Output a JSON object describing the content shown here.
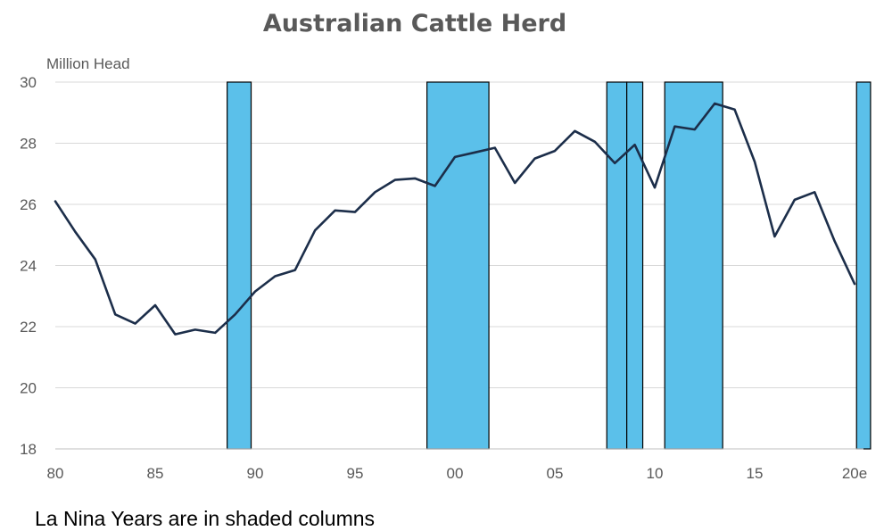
{
  "chart_data": {
    "type": "line",
    "title": "Australian Cattle Herd",
    "ylabel": "Million Head",
    "xlabel": "",
    "ylim": [
      18,
      30
    ],
    "xlim": [
      1980,
      2020
    ],
    "y_ticks": [
      18,
      20,
      22,
      24,
      26,
      28,
      30
    ],
    "x_ticks": [
      {
        "value": 1980,
        "label": "80"
      },
      {
        "value": 1985,
        "label": "85"
      },
      {
        "value": 1990,
        "label": "90"
      },
      {
        "value": 1995,
        "label": "95"
      },
      {
        "value": 2000,
        "label": "00"
      },
      {
        "value": 2005,
        "label": "05"
      },
      {
        "value": 2010,
        "label": "10"
      },
      {
        "value": 2015,
        "label": "15"
      },
      {
        "value": 2020,
        "label": "20e"
      }
    ],
    "grid": "horizontal",
    "colors": {
      "line": "#1c2e4a",
      "shade": "#5bc0ea",
      "shade_border": "#000000",
      "grid": "#d9d9d9",
      "text": "#595959"
    },
    "series": [
      {
        "x": [
          1980,
          1981,
          1982,
          1983,
          1984,
          1985,
          1986,
          1987,
          1988,
          1989,
          1990,
          1991,
          1992,
          1993,
          1994,
          1995,
          1996,
          1997,
          1998,
          1999,
          2000,
          2001,
          2002,
          2003,
          2004,
          2005,
          2006,
          2007,
          2008,
          2009,
          2010,
          2011,
          2012,
          2013,
          2014,
          2015,
          2016,
          2017,
          2018,
          2019,
          2020
        ],
        "values": [
          26.1,
          25.1,
          24.2,
          22.4,
          22.1,
          22.7,
          21.75,
          21.9,
          21.8,
          22.4,
          23.15,
          23.65,
          23.85,
          25.15,
          25.8,
          25.75,
          26.4,
          26.8,
          26.85,
          26.6,
          27.55,
          27.7,
          27.85,
          26.7,
          27.5,
          27.75,
          28.4,
          28.05,
          27.35,
          27.95,
          26.55,
          28.55,
          28.45,
          29.3,
          29.1,
          27.4,
          24.95,
          26.15,
          26.4,
          24.8,
          23.4
        ]
      }
    ],
    "shaded_periods": [
      {
        "start": 1988.6,
        "end": 1989.8
      },
      {
        "start": 1998.6,
        "end": 2001.7
      },
      {
        "start": 2007.6,
        "end": 2008.6
      },
      {
        "start": 2008.6,
        "end": 2009.4
      },
      {
        "start": 2010.5,
        "end": 2013.4
      },
      {
        "start": 2020.1,
        "end": 2020.8
      }
    ],
    "note": "La Nina Years are in shaded columns"
  }
}
